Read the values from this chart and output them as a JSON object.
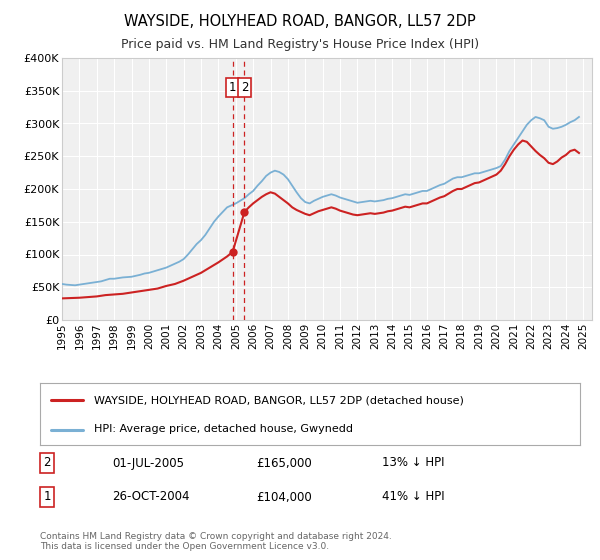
{
  "title": "WAYSIDE, HOLYHEAD ROAD, BANGOR, LL57 2DP",
  "subtitle": "Price paid vs. HM Land Registry's House Price Index (HPI)",
  "title_fontsize": 10.5,
  "subtitle_fontsize": 9.0,
  "background_color": "#ffffff",
  "plot_bg_color": "#f0f0f0",
  "grid_color": "#ffffff",
  "ylim": [
    0,
    400000
  ],
  "yticks": [
    0,
    50000,
    100000,
    150000,
    200000,
    250000,
    300000,
    350000,
    400000
  ],
  "ytick_labels": [
    "£0",
    "£50K",
    "£100K",
    "£150K",
    "£200K",
    "£250K",
    "£300K",
    "£350K",
    "£400K"
  ],
  "xlim_start": 1995.0,
  "xlim_end": 2025.5,
  "xticks": [
    1995,
    1996,
    1997,
    1998,
    1999,
    2000,
    2001,
    2002,
    2003,
    2004,
    2005,
    2006,
    2007,
    2008,
    2009,
    2010,
    2011,
    2012,
    2013,
    2014,
    2015,
    2016,
    2017,
    2018,
    2019,
    2020,
    2021,
    2022,
    2023,
    2024,
    2025
  ],
  "hpi_color": "#7ab0d4",
  "price_color": "#cc2222",
  "dashed_line_x1": 2004.82,
  "dashed_line_x2": 2005.5,
  "dashed_line_color": "#cc2222",
  "marker1_x": 2004.82,
  "marker1_y": 104000,
  "marker2_x": 2005.5,
  "marker2_y": 165000,
  "legend_label_price": "WAYSIDE, HOLYHEAD ROAD, BANGOR, LL57 2DP (detached house)",
  "legend_label_hpi": "HPI: Average price, detached house, Gwynedd",
  "footer_text": "Contains HM Land Registry data © Crown copyright and database right 2024.\nThis data is licensed under the Open Government Licence v3.0.",
  "table_rows": [
    {
      "num": "1",
      "date": "26-OCT-2004",
      "price": "£104,000",
      "hpi_diff": "41% ↓ HPI"
    },
    {
      "num": "2",
      "date": "01-JUL-2005",
      "price": "£165,000",
      "hpi_diff": "13% ↓ HPI"
    }
  ],
  "hpi_data": [
    [
      1995.0,
      55000
    ],
    [
      1995.25,
      54000
    ],
    [
      1995.5,
      53500
    ],
    [
      1995.75,
      53000
    ],
    [
      1996.0,
      54000
    ],
    [
      1996.25,
      55000
    ],
    [
      1996.5,
      56000
    ],
    [
      1996.75,
      57000
    ],
    [
      1997.0,
      58000
    ],
    [
      1997.25,
      59000
    ],
    [
      1997.5,
      61000
    ],
    [
      1997.75,
      63000
    ],
    [
      1998.0,
      63000
    ],
    [
      1998.25,
      64000
    ],
    [
      1998.5,
      65000
    ],
    [
      1998.75,
      65500
    ],
    [
      1999.0,
      66000
    ],
    [
      1999.25,
      67500
    ],
    [
      1999.5,
      69000
    ],
    [
      1999.75,
      71000
    ],
    [
      2000.0,
      72000
    ],
    [
      2000.25,
      74000
    ],
    [
      2000.5,
      76000
    ],
    [
      2000.75,
      78000
    ],
    [
      2001.0,
      80000
    ],
    [
      2001.25,
      83000
    ],
    [
      2001.5,
      86000
    ],
    [
      2001.75,
      89000
    ],
    [
      2002.0,
      93000
    ],
    [
      2002.25,
      100000
    ],
    [
      2002.5,
      108000
    ],
    [
      2002.75,
      116000
    ],
    [
      2003.0,
      122000
    ],
    [
      2003.25,
      130000
    ],
    [
      2003.5,
      140000
    ],
    [
      2003.75,
      150000
    ],
    [
      2004.0,
      158000
    ],
    [
      2004.25,
      165000
    ],
    [
      2004.5,
      172000
    ],
    [
      2004.75,
      175000
    ],
    [
      2005.0,
      178000
    ],
    [
      2005.25,
      182000
    ],
    [
      2005.5,
      186000
    ],
    [
      2005.75,
      192000
    ],
    [
      2006.0,
      197000
    ],
    [
      2006.25,
      205000
    ],
    [
      2006.5,
      212000
    ],
    [
      2006.75,
      220000
    ],
    [
      2007.0,
      225000
    ],
    [
      2007.25,
      228000
    ],
    [
      2007.5,
      226000
    ],
    [
      2007.75,
      222000
    ],
    [
      2008.0,
      215000
    ],
    [
      2008.25,
      205000
    ],
    [
      2008.5,
      195000
    ],
    [
      2008.75,
      186000
    ],
    [
      2009.0,
      180000
    ],
    [
      2009.25,
      178000
    ],
    [
      2009.5,
      182000
    ],
    [
      2009.75,
      185000
    ],
    [
      2010.0,
      188000
    ],
    [
      2010.25,
      190000
    ],
    [
      2010.5,
      192000
    ],
    [
      2010.75,
      190000
    ],
    [
      2011.0,
      187000
    ],
    [
      2011.25,
      185000
    ],
    [
      2011.5,
      183000
    ],
    [
      2011.75,
      181000
    ],
    [
      2012.0,
      179000
    ],
    [
      2012.25,
      180000
    ],
    [
      2012.5,
      181000
    ],
    [
      2012.75,
      182000
    ],
    [
      2013.0,
      181000
    ],
    [
      2013.25,
      182000
    ],
    [
      2013.5,
      183000
    ],
    [
      2013.75,
      185000
    ],
    [
      2014.0,
      186000
    ],
    [
      2014.25,
      188000
    ],
    [
      2014.5,
      190000
    ],
    [
      2014.75,
      192000
    ],
    [
      2015.0,
      191000
    ],
    [
      2015.25,
      193000
    ],
    [
      2015.5,
      195000
    ],
    [
      2015.75,
      197000
    ],
    [
      2016.0,
      197000
    ],
    [
      2016.25,
      200000
    ],
    [
      2016.5,
      203000
    ],
    [
      2016.75,
      206000
    ],
    [
      2017.0,
      208000
    ],
    [
      2017.25,
      212000
    ],
    [
      2017.5,
      216000
    ],
    [
      2017.75,
      218000
    ],
    [
      2018.0,
      218000
    ],
    [
      2018.25,
      220000
    ],
    [
      2018.5,
      222000
    ],
    [
      2018.75,
      224000
    ],
    [
      2019.0,
      224000
    ],
    [
      2019.25,
      226000
    ],
    [
      2019.5,
      228000
    ],
    [
      2019.75,
      230000
    ],
    [
      2020.0,
      232000
    ],
    [
      2020.25,
      235000
    ],
    [
      2020.5,
      245000
    ],
    [
      2020.75,
      258000
    ],
    [
      2021.0,
      268000
    ],
    [
      2021.25,
      278000
    ],
    [
      2021.5,
      288000
    ],
    [
      2021.75,
      298000
    ],
    [
      2022.0,
      305000
    ],
    [
      2022.25,
      310000
    ],
    [
      2022.5,
      308000
    ],
    [
      2022.75,
      305000
    ],
    [
      2023.0,
      295000
    ],
    [
      2023.25,
      292000
    ],
    [
      2023.5,
      293000
    ],
    [
      2023.75,
      295000
    ],
    [
      2024.0,
      298000
    ],
    [
      2024.25,
      302000
    ],
    [
      2024.5,
      305000
    ],
    [
      2024.75,
      310000
    ]
  ],
  "price_data": [
    [
      1995.0,
      33000
    ],
    [
      1995.5,
      33500
    ],
    [
      1996.0,
      34000
    ],
    [
      1996.5,
      35000
    ],
    [
      1997.0,
      36000
    ],
    [
      1997.5,
      38000
    ],
    [
      1998.0,
      39000
    ],
    [
      1998.5,
      40000
    ],
    [
      1999.0,
      42000
    ],
    [
      1999.5,
      44000
    ],
    [
      2000.0,
      46000
    ],
    [
      2000.5,
      48000
    ],
    [
      2001.0,
      52000
    ],
    [
      2001.5,
      55000
    ],
    [
      2002.0,
      60000
    ],
    [
      2002.5,
      66000
    ],
    [
      2003.0,
      72000
    ],
    [
      2003.5,
      80000
    ],
    [
      2004.0,
      88000
    ],
    [
      2004.5,
      97000
    ],
    [
      2004.82,
      104000
    ],
    [
      2005.5,
      165000
    ],
    [
      2005.75,
      172000
    ],
    [
      2006.0,
      178000
    ],
    [
      2006.25,
      183000
    ],
    [
      2006.5,
      188000
    ],
    [
      2006.75,
      192000
    ],
    [
      2007.0,
      195000
    ],
    [
      2007.25,
      193000
    ],
    [
      2007.5,
      188000
    ],
    [
      2007.75,
      183000
    ],
    [
      2008.0,
      178000
    ],
    [
      2008.25,
      172000
    ],
    [
      2008.5,
      168000
    ],
    [
      2008.75,
      165000
    ],
    [
      2009.0,
      162000
    ],
    [
      2009.25,
      160000
    ],
    [
      2009.5,
      163000
    ],
    [
      2009.75,
      166000
    ],
    [
      2010.0,
      168000
    ],
    [
      2010.25,
      170000
    ],
    [
      2010.5,
      172000
    ],
    [
      2010.75,
      170000
    ],
    [
      2011.0,
      167000
    ],
    [
      2011.25,
      165000
    ],
    [
      2011.5,
      163000
    ],
    [
      2011.75,
      161000
    ],
    [
      2012.0,
      160000
    ],
    [
      2012.25,
      161000
    ],
    [
      2012.5,
      162000
    ],
    [
      2012.75,
      163000
    ],
    [
      2013.0,
      162000
    ],
    [
      2013.25,
      163000
    ],
    [
      2013.5,
      164000
    ],
    [
      2013.75,
      166000
    ],
    [
      2014.0,
      167000
    ],
    [
      2014.25,
      169000
    ],
    [
      2014.5,
      171000
    ],
    [
      2014.75,
      173000
    ],
    [
      2015.0,
      172000
    ],
    [
      2015.25,
      174000
    ],
    [
      2015.5,
      176000
    ],
    [
      2015.75,
      178000
    ],
    [
      2016.0,
      178000
    ],
    [
      2016.25,
      181000
    ],
    [
      2016.5,
      184000
    ],
    [
      2016.75,
      187000
    ],
    [
      2017.0,
      189000
    ],
    [
      2017.25,
      193000
    ],
    [
      2017.5,
      197000
    ],
    [
      2017.75,
      200000
    ],
    [
      2018.0,
      200000
    ],
    [
      2018.25,
      203000
    ],
    [
      2018.5,
      206000
    ],
    [
      2018.75,
      209000
    ],
    [
      2019.0,
      210000
    ],
    [
      2019.25,
      213000
    ],
    [
      2019.5,
      216000
    ],
    [
      2019.75,
      219000
    ],
    [
      2020.0,
      222000
    ],
    [
      2020.25,
      228000
    ],
    [
      2020.5,
      238000
    ],
    [
      2020.75,
      250000
    ],
    [
      2021.0,
      260000
    ],
    [
      2021.25,
      268000
    ],
    [
      2021.5,
      274000
    ],
    [
      2021.75,
      272000
    ],
    [
      2022.0,
      265000
    ],
    [
      2022.25,
      258000
    ],
    [
      2022.5,
      252000
    ],
    [
      2022.75,
      247000
    ],
    [
      2023.0,
      240000
    ],
    [
      2023.25,
      238000
    ],
    [
      2023.5,
      242000
    ],
    [
      2023.75,
      248000
    ],
    [
      2024.0,
      252000
    ],
    [
      2024.25,
      258000
    ],
    [
      2024.5,
      260000
    ],
    [
      2024.75,
      255000
    ]
  ]
}
